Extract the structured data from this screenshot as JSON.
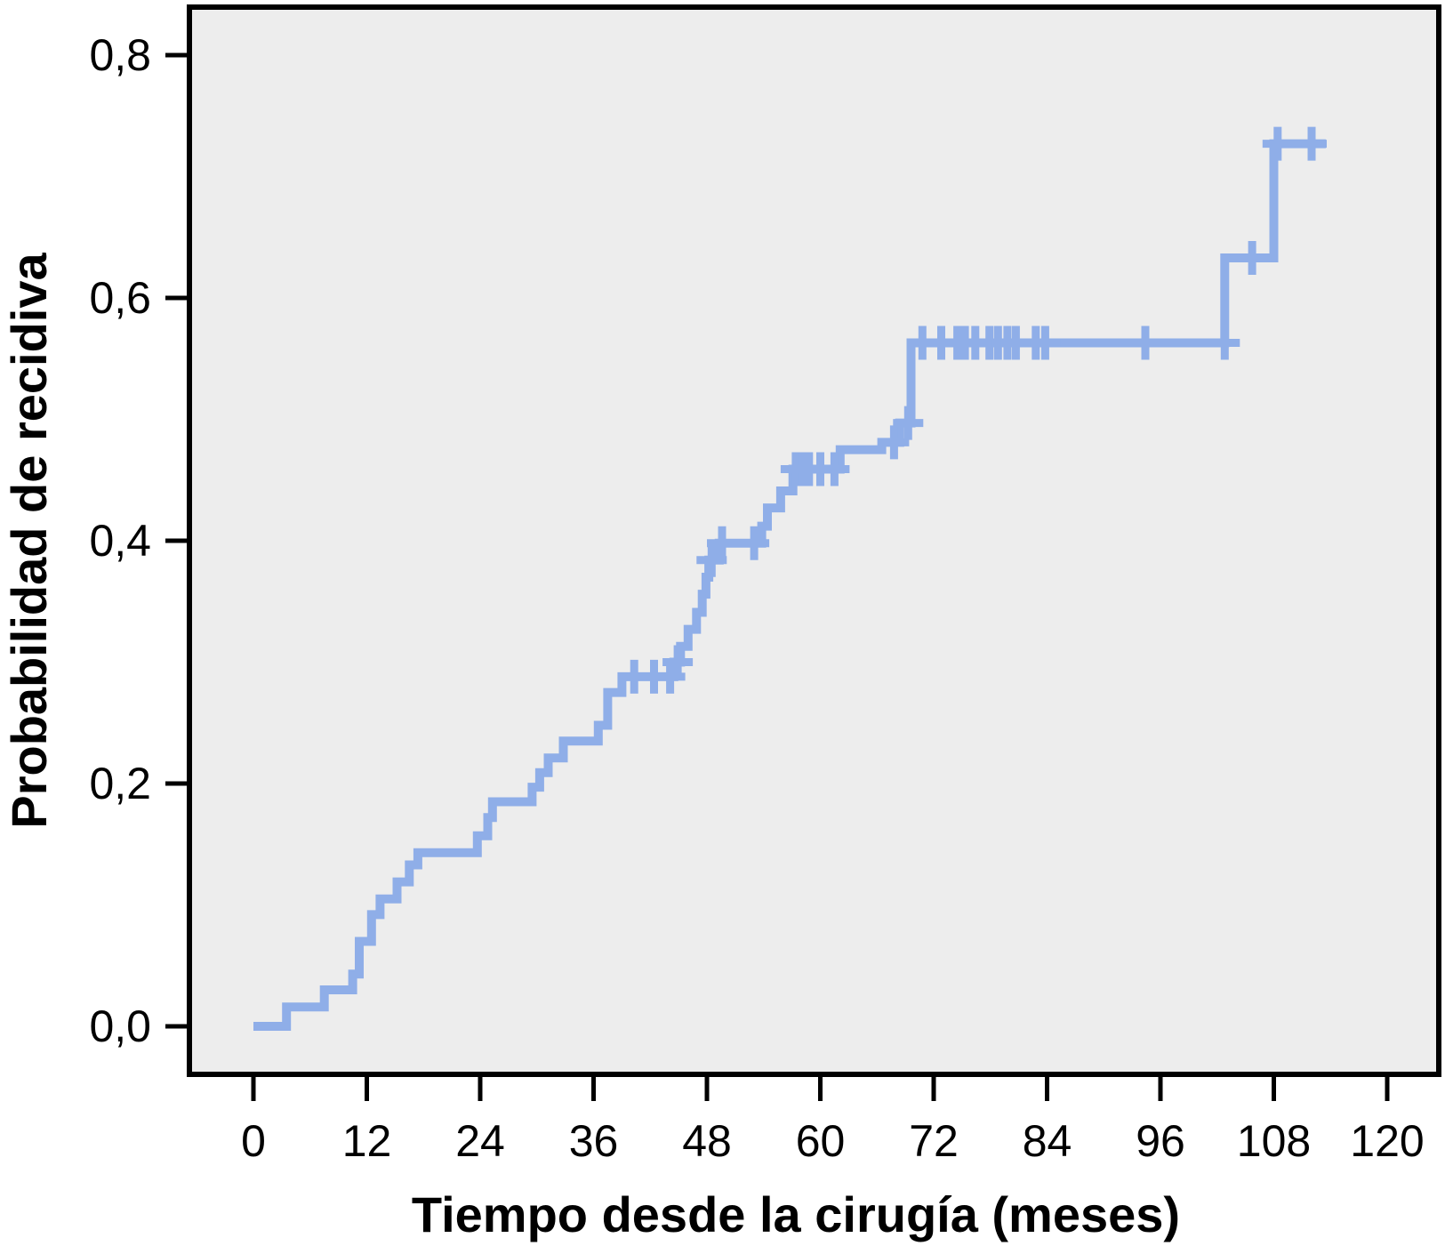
{
  "chart_data": {
    "type": "line",
    "subtype": "kaplan-meier-step",
    "title": "",
    "xlabel": "Tiempo desde la cirugía (meses)",
    "ylabel": "Probabilidad de recidiva",
    "xlim": [
      0,
      120
    ],
    "ylim": [
      0.0,
      0.8
    ],
    "x_ticks": [
      0,
      12,
      24,
      36,
      48,
      60,
      72,
      84,
      96,
      108,
      120
    ],
    "y_tick_labels": [
      "0,0",
      "0,2",
      "0,4",
      "0,6",
      "0,8"
    ],
    "y_tick_values": [
      0.0,
      0.2,
      0.4,
      0.6,
      0.8
    ],
    "decimal_separator": ",",
    "grid": false,
    "legend": "none",
    "series": [
      {
        "name": "Probabilidad de recidiva",
        "color": "#8FAEE8",
        "marker": "plus-censor",
        "steps": [
          [
            0,
            0.0
          ],
          [
            3.5,
            0.016
          ],
          [
            7.5,
            0.03
          ],
          [
            10.5,
            0.043
          ],
          [
            11.2,
            0.07
          ],
          [
            12.5,
            0.092
          ],
          [
            13.4,
            0.105
          ],
          [
            15.2,
            0.119
          ],
          [
            16.5,
            0.133
          ],
          [
            17.4,
            0.143
          ],
          [
            23.7,
            0.157
          ],
          [
            24.8,
            0.172
          ],
          [
            25.3,
            0.185
          ],
          [
            29.5,
            0.197
          ],
          [
            30.3,
            0.209
          ],
          [
            31.2,
            0.221
          ],
          [
            32.8,
            0.235
          ],
          [
            36.5,
            0.248
          ],
          [
            37.5,
            0.275
          ],
          [
            39.0,
            0.288
          ],
          [
            44.5,
            0.3
          ],
          [
            45.2,
            0.313
          ],
          [
            46.0,
            0.327
          ],
          [
            46.9,
            0.341
          ],
          [
            47.5,
            0.356
          ],
          [
            47.9,
            0.37
          ],
          [
            48.2,
            0.384
          ],
          [
            49.3,
            0.398
          ],
          [
            53.8,
            0.412
          ],
          [
            54.4,
            0.427
          ],
          [
            55.8,
            0.441
          ],
          [
            57.1,
            0.459
          ],
          [
            62.1,
            0.475
          ],
          [
            66.5,
            0.481
          ],
          [
            68.4,
            0.497
          ],
          [
            69.6,
            0.563
          ],
          [
            102.8,
            0.633
          ],
          [
            108.0,
            0.727
          ]
        ],
        "end_time": 113.5,
        "censored": [
          [
            40.3,
            0.288
          ],
          [
            42.4,
            0.288
          ],
          [
            44.1,
            0.288
          ],
          [
            44.9,
            0.3
          ],
          [
            48.5,
            0.384
          ],
          [
            49.6,
            0.398
          ],
          [
            53.0,
            0.398
          ],
          [
            57.4,
            0.459
          ],
          [
            58.2,
            0.459
          ],
          [
            58.8,
            0.459
          ],
          [
            60.0,
            0.459
          ],
          [
            61.5,
            0.459
          ],
          [
            67.8,
            0.481
          ],
          [
            69.3,
            0.497
          ],
          [
            70.8,
            0.563
          ],
          [
            72.8,
            0.563
          ],
          [
            74.5,
            0.563
          ],
          [
            75.3,
            0.563
          ],
          [
            76.4,
            0.563
          ],
          [
            77.9,
            0.563
          ],
          [
            78.8,
            0.563
          ],
          [
            79.8,
            0.563
          ],
          [
            80.7,
            0.563
          ],
          [
            82.8,
            0.563
          ],
          [
            83.8,
            0.563
          ],
          [
            94.4,
            0.563
          ],
          [
            102.8,
            0.563
          ],
          [
            105.7,
            0.633
          ],
          [
            108.4,
            0.727
          ],
          [
            112.0,
            0.727
          ]
        ]
      }
    ]
  },
  "plot": {
    "background": "#EDEDED",
    "border_color": "#000000",
    "outer_background": "#FFFFFF",
    "curve_color": "#8FAEE8"
  }
}
